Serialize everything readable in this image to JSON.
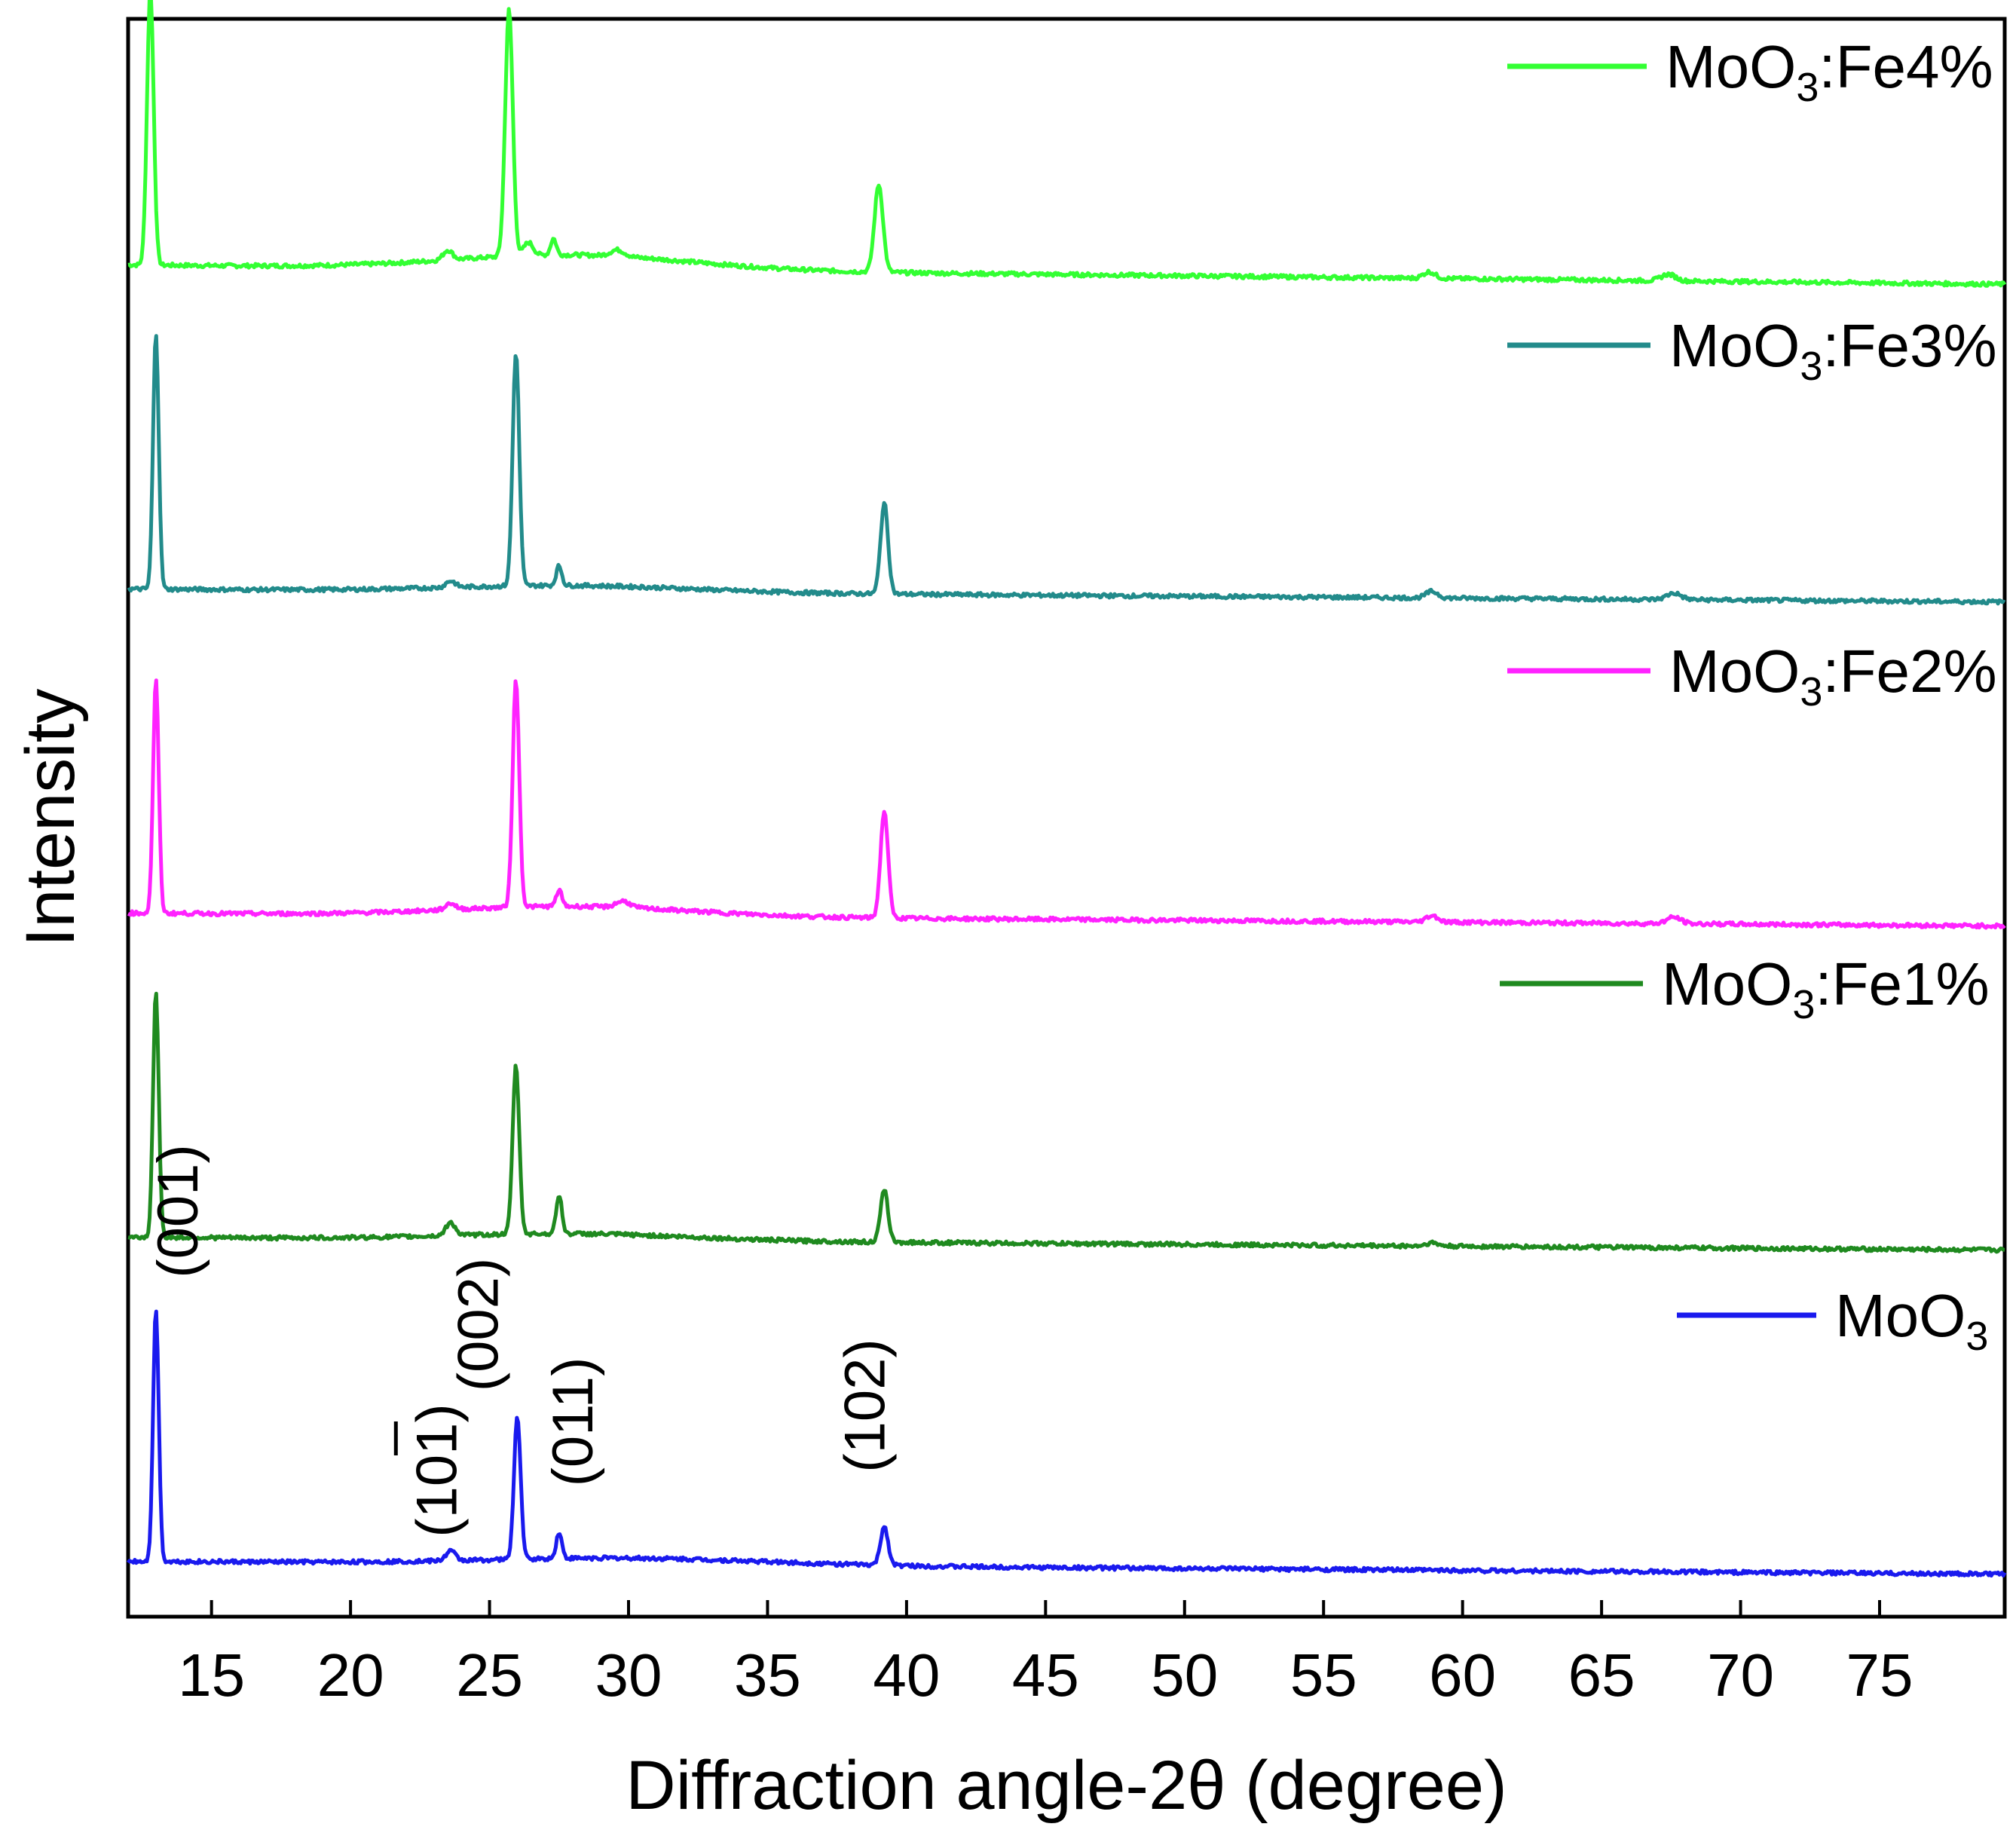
{
  "chart_data": {
    "type": "line",
    "title": "",
    "xlabel": "Diffraction angle-2θ (degree)",
    "ylabel": "Intensity",
    "xlim": [
      12,
      79.5
    ],
    "xticks": [
      15,
      20,
      25,
      30,
      35,
      40,
      45,
      50,
      55,
      60,
      65,
      70,
      75
    ],
    "xtick_labels": [
      "15",
      "20",
      "25",
      "30",
      "35",
      "40",
      "45",
      "50",
      "55",
      "60",
      "65",
      "70",
      "75"
    ],
    "y_units": "a.u. (stacked, offset traces)",
    "series": [
      {
        "name": "MoO3:Fe4%",
        "label_main": "MoO",
        "label_sub": "3",
        "label_suffix": ":Fe4%",
        "color": "#33ff33",
        "offset": 4.0,
        "baseline": {
          "start": 0.02,
          "end": -0.04
        },
        "hump": {
          "center": 28,
          "width": 6,
          "height": 0.045
        },
        "peaks": [
          {
            "x": 12.8,
            "h": 0.85,
            "w": 0.14
          },
          {
            "x": 23.5,
            "h": 0.03,
            "w": 0.2
          },
          {
            "x": 25.7,
            "h": 0.76,
            "w": 0.16
          },
          {
            "x": 26.4,
            "h": 0.04,
            "w": 0.2
          },
          {
            "x": 27.3,
            "h": 0.05,
            "w": 0.12
          },
          {
            "x": 29.6,
            "h": 0.02,
            "w": 0.3
          },
          {
            "x": 39.0,
            "h": 0.27,
            "w": 0.18
          },
          {
            "x": 58.8,
            "h": 0.02,
            "w": 0.25
          },
          {
            "x": 67.4,
            "h": 0.02,
            "w": 0.3
          }
        ]
      },
      {
        "name": "MoO3:Fe3%",
        "label_main": "MoO",
        "label_sub": "3",
        "label_suffix": ":Fe3%",
        "color": "#228b8b",
        "offset": 3.0,
        "baseline": {
          "start": 0.02,
          "end": -0.02
        },
        "hump": {
          "center": 28,
          "width": 6,
          "height": 0.02
        },
        "peaks": [
          {
            "x": 13.0,
            "h": 0.79,
            "w": 0.12
          },
          {
            "x": 23.6,
            "h": 0.02,
            "w": 0.2
          },
          {
            "x": 25.95,
            "h": 0.72,
            "w": 0.14
          },
          {
            "x": 27.5,
            "h": 0.06,
            "w": 0.12
          },
          {
            "x": 39.2,
            "h": 0.28,
            "w": 0.16
          },
          {
            "x": 58.9,
            "h": 0.02,
            "w": 0.25
          },
          {
            "x": 67.6,
            "h": 0.02,
            "w": 0.3
          }
        ]
      },
      {
        "name": "MoO3:Fe2%",
        "label_main": "MoO",
        "label_sub": "3",
        "label_suffix": ":Fe2%",
        "color": "#ff22ff",
        "offset": 2.0,
        "baseline": {
          "start": 0.02,
          "end": -0.02
        },
        "hump": {
          "center": 28,
          "width": 6,
          "height": 0.03
        },
        "peaks": [
          {
            "x": 13.0,
            "h": 0.72,
            "w": 0.12
          },
          {
            "x": 23.6,
            "h": 0.02,
            "w": 0.2
          },
          {
            "x": 25.95,
            "h": 0.7,
            "w": 0.14
          },
          {
            "x": 27.5,
            "h": 0.05,
            "w": 0.12
          },
          {
            "x": 29.8,
            "h": 0.02,
            "w": 0.3
          },
          {
            "x": 39.2,
            "h": 0.33,
            "w": 0.16
          },
          {
            "x": 58.9,
            "h": 0.02,
            "w": 0.25
          },
          {
            "x": 67.6,
            "h": 0.02,
            "w": 0.3
          }
        ]
      },
      {
        "name": "MoO3:Fe1%",
        "label_main": "MoO",
        "label_sub": "3",
        "label_suffix": ":Fe1%",
        "color": "#1f8a1f",
        "offset": 1.0,
        "baseline": {
          "start": 0.02,
          "end": -0.02
        },
        "hump": {
          "center": 28,
          "width": 6,
          "height": 0.02
        },
        "peaks": [
          {
            "x": 13.0,
            "h": 0.76,
            "w": 0.12
          },
          {
            "x": 23.6,
            "h": 0.04,
            "w": 0.2
          },
          {
            "x": 25.95,
            "h": 0.52,
            "w": 0.14
          },
          {
            "x": 27.5,
            "h": 0.12,
            "w": 0.12
          },
          {
            "x": 39.2,
            "h": 0.16,
            "w": 0.16
          },
          {
            "x": 58.9,
            "h": 0.01,
            "w": 0.25
          }
        ]
      },
      {
        "name": "MoO3",
        "label_main": "MoO",
        "label_sub": "3",
        "label_suffix": "",
        "color": "#1a1aee",
        "offset": 0.0,
        "baseline": {
          "start": 0.02,
          "end": -0.02
        },
        "hump": {
          "center": 30,
          "width": 7,
          "height": 0.02
        },
        "peaks": [
          {
            "x": 13.0,
            "h": 0.78,
            "w": 0.12
          },
          {
            "x": 23.6,
            "h": 0.03,
            "w": 0.2
          },
          {
            "x": 26.0,
            "h": 0.44,
            "w": 0.14
          },
          {
            "x": 27.5,
            "h": 0.08,
            "w": 0.12
          },
          {
            "x": 39.2,
            "h": 0.12,
            "w": 0.16
          }
        ]
      }
    ],
    "annotations": [
      {
        "text": "(001)",
        "x": 14.5,
        "y": 1.1,
        "bar": false
      },
      {
        "text": "(101)",
        "x": 23.8,
        "y": 0.3,
        "bar": true
      },
      {
        "text": "(002)",
        "x": 25.3,
        "y": 0.75,
        "bar": false
      },
      {
        "text": "(011)",
        "x": 28.7,
        "y": 0.45,
        "bar": false
      },
      {
        "text": "(102)",
        "x": 39.2,
        "y": 0.5,
        "bar": false
      }
    ]
  }
}
